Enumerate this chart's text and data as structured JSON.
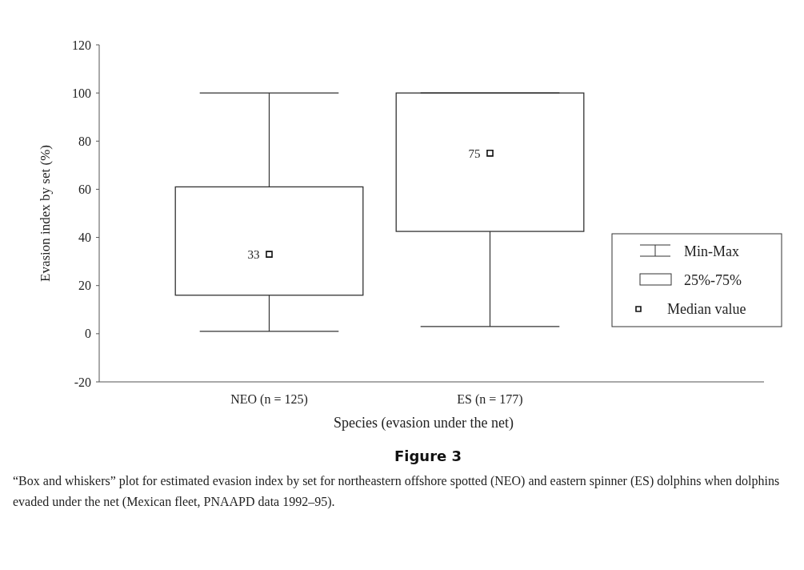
{
  "chart_data": {
    "type": "box",
    "title": "Figure 3",
    "xlabel": "Species (evasion under the net)",
    "ylabel": "Evasion index by set (%)",
    "categories": [
      "NEO (n = 125)",
      "ES (n = 177)"
    ],
    "boxes": [
      {
        "low": 1,
        "q1": 16,
        "median": 33,
        "q3": 61,
        "high": 100
      },
      {
        "low": 3,
        "q1": 42.5,
        "median": 75,
        "q3": 100,
        "high": 100
      }
    ],
    "color": "#333333",
    "marker": "square",
    "ylim": [
      -20,
      120
    ],
    "yticks": [
      -20,
      0,
      20,
      40,
      60,
      80,
      100,
      120
    ],
    "grid": false,
    "annotations": [
      {
        "text": "33",
        "x": "NEO (n = 125)",
        "y": 33
      },
      {
        "text": "75",
        "x": "ES (n = 177)",
        "y": 75
      },
      "Min-Max",
      "25%-75%",
      "Median value",
      "“Box and whiskers” plot for estimated evasion index by set for northeastern offshore spotted (NEO) and eastern spinner (ES) dolphins when dolphins evaded under the net (Mexican fleet, PNAAPD data 1992–95)."
    ]
  }
}
